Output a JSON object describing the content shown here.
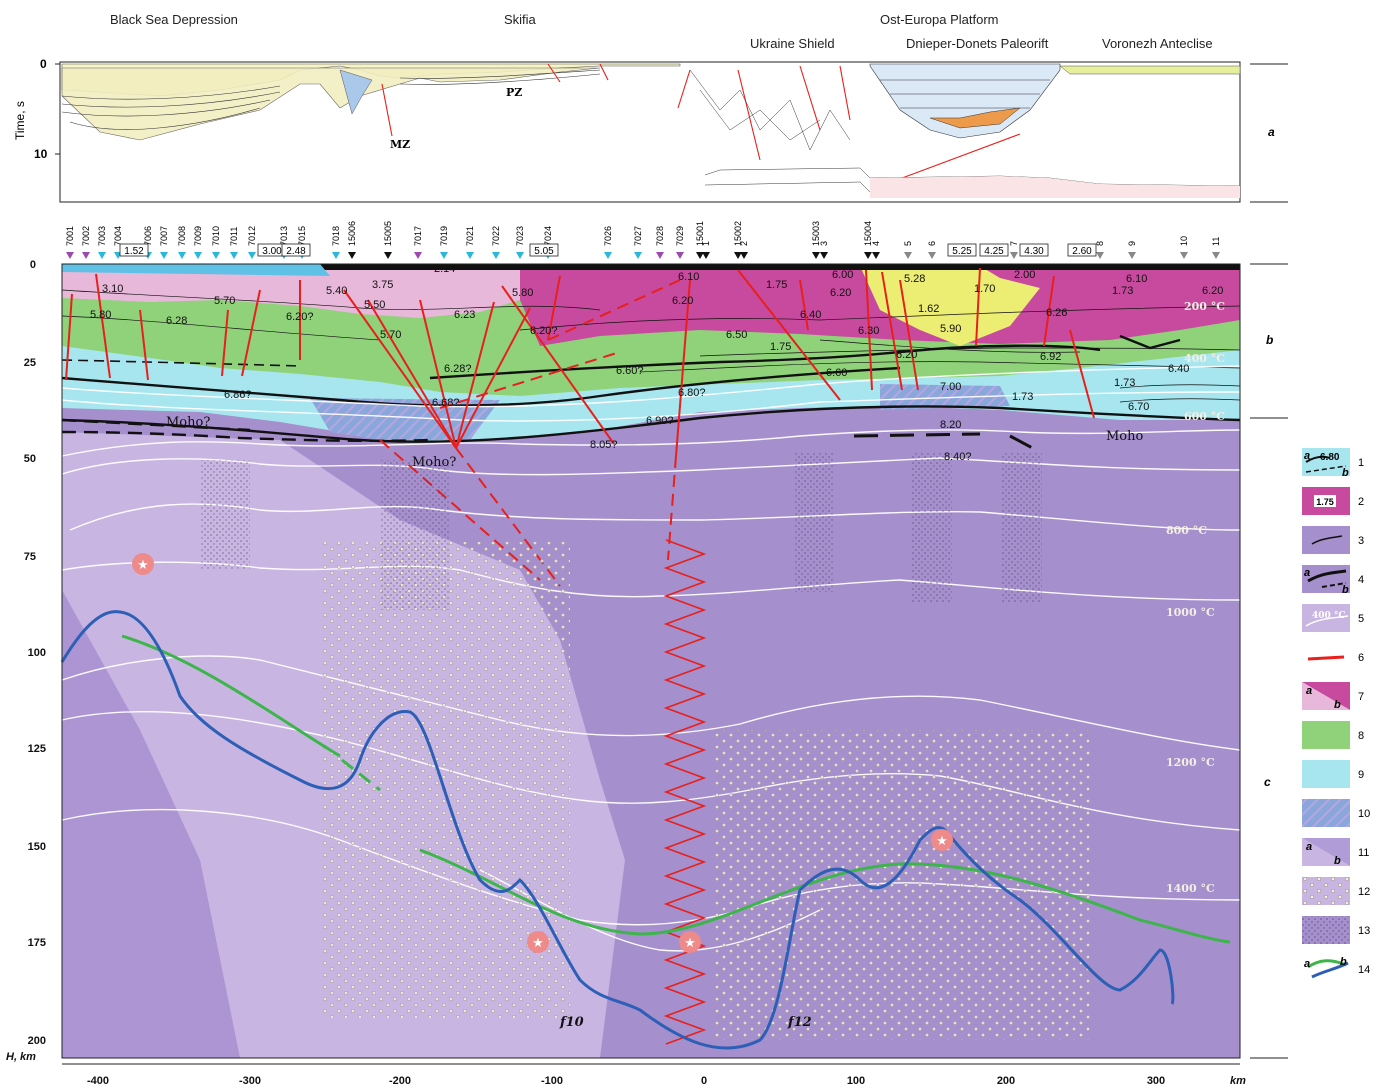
{
  "regions": {
    "top": [
      {
        "id": "black-sea",
        "label": "Black Sea Depression"
      },
      {
        "id": "skifia",
        "label": "Skifia"
      },
      {
        "id": "ost-europa",
        "label": "Ost-Europa Platform"
      }
    ],
    "sub": [
      {
        "id": "ukraine",
        "label": "Ukraine Shield"
      },
      {
        "id": "dnieper",
        "label": "Dnieper-Donets Paleorift"
      },
      {
        "id": "voronezh",
        "label": "Voronezh Anteclise"
      }
    ]
  },
  "panel_a": {
    "ylabel": "Time, s",
    "ticks": [
      "0",
      "10"
    ],
    "labels": {
      "mz": "MZ",
      "pz": "PZ"
    }
  },
  "panel_letters": {
    "a": "a",
    "b": "b",
    "c": "c"
  },
  "stations": [
    "7001",
    "7002",
    "7003",
    "7004",
    "7006",
    "7007",
    "7008",
    "7009",
    "7010",
    "7011",
    "7012",
    "7013",
    "7015",
    "7018",
    "15006",
    "15005",
    "7017",
    "7019",
    "7021",
    "7022",
    "7023",
    "7024",
    "7026",
    "7027",
    "7028",
    "7029",
    "15001",
    "1",
    "15002",
    "2",
    "15003",
    "3",
    "15004",
    "4",
    "5",
    "6",
    "7",
    "8",
    "9",
    "10",
    "11"
  ],
  "boxed_values": [
    "1.52",
    "3.00",
    "2.48",
    "5.05",
    "5.25",
    "4.25",
    "4.30",
    "2.60"
  ],
  "velocities": {
    "v310": "3.10",
    "v580": "5.80",
    "v628": "6.28",
    "v570": "5.70",
    "v540": "5.40",
    "v375": "3.75",
    "v214": "2.14",
    "v550": "5.50",
    "v620q": "6.20?",
    "v623": "6.23",
    "v580b": "5.80",
    "v620q2": "6.20?",
    "v610": "6.10",
    "v620": "6.20",
    "v175": "1.75",
    "v600": "6.00",
    "v620b": "6.20",
    "v528": "5.28",
    "v170": "1.70",
    "v200": "2.00",
    "v610b": "6.10",
    "v173": "1.73",
    "v620c": "6.20",
    "v570b": "5.70",
    "v650": "6.50",
    "v640": "6.40",
    "v630": "6.30",
    "v162": "1.62",
    "v590": "5.90",
    "v626": "6.26",
    "v175b": "1.75",
    "v660": "6.60",
    "v620d": "6.20",
    "v692": "6.92",
    "v640b": "6.40",
    "v628q": "6.28?",
    "v660q": "6.60?",
    "v686q": "6.86?",
    "v668q": "6.68?",
    "v680q": "6.80?",
    "v700": "7.00",
    "v173b": "1.73",
    "v173c": "1.73",
    "v670": "6.70",
    "v690q": "6.90?",
    "v805q": "8.05?",
    "v820": "8.20",
    "v840q": "8.40?"
  },
  "moho": {
    "m1": "Moho?",
    "m2": "Moho?",
    "m3": "Moho"
  },
  "isotherms": [
    "200 °C",
    "400 °C",
    "600 °C",
    "800 °C",
    "1000 °C",
    "1200 °C",
    "1400 °C"
  ],
  "depth_axis": {
    "label": "H, km",
    "ticks": [
      "0",
      "25",
      "50",
      "75",
      "100",
      "125",
      "150",
      "175",
      "200"
    ]
  },
  "distance_axis": {
    "unit": "km",
    "ticks": [
      "-400",
      "-300",
      "-200",
      "-100",
      "0",
      "100",
      "200",
      "300"
    ]
  },
  "zones": {
    "f10": "f10",
    "f12": "f12"
  },
  "legend": [
    {
      "n": "1",
      "a": "a",
      "b": "b",
      "val": "6.80"
    },
    {
      "n": "2",
      "val": "1.75"
    },
    {
      "n": "3"
    },
    {
      "n": "4",
      "a": "a",
      "b": "b"
    },
    {
      "n": "5",
      "val": "400 °C"
    },
    {
      "n": "6"
    },
    {
      "n": "7",
      "a": "a",
      "b": "b"
    },
    {
      "n": "8"
    },
    {
      "n": "9"
    },
    {
      "n": "10"
    },
    {
      "n": "11",
      "a": "a",
      "b": "b"
    },
    {
      "n": "12"
    },
    {
      "n": "13"
    },
    {
      "n": "14",
      "a": "a",
      "b": "b"
    }
  ],
  "colors": {
    "mantle": "#a58fcc",
    "mantle_light": "#c8b5e2",
    "crust_upper": "#c84a9e",
    "green": "#8fd27a",
    "cyan": "#a7e6ef",
    "pink": "#e7b8d9",
    "yellow": "#ecee74",
    "fault": "#e8201c",
    "heat": "#2c5fb5",
    "green_line": "#3cb54a"
  }
}
